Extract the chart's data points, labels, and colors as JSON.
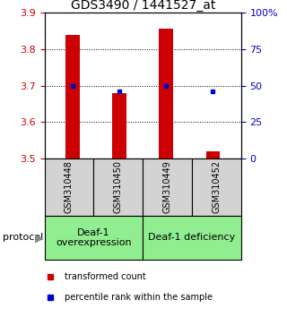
{
  "title": "GDS3490 / 1441527_at",
  "samples": [
    "GSM310448",
    "GSM310450",
    "GSM310449",
    "GSM310452"
  ],
  "red_bar_values": [
    3.84,
    3.68,
    3.855,
    3.52
  ],
  "blue_square_values": [
    3.7,
    3.685,
    3.7,
    3.685
  ],
  "ymin": 3.5,
  "ymax": 3.9,
  "yticks_left": [
    3.5,
    3.6,
    3.7,
    3.8,
    3.9
  ],
  "yticks_right": [
    0,
    25,
    50,
    75,
    100
  ],
  "yticks_right_labels": [
    "0",
    "25",
    "50",
    "75",
    "100%"
  ],
  "bar_color": "#cc0000",
  "square_color": "#0000cc",
  "bar_baseline": 3.5,
  "group1_label": "Deaf-1\noverexpression",
  "group2_label": "Deaf-1 deficiency",
  "group1_samples": 2,
  "group2_samples": 2,
  "protocol_label": "protocol",
  "group_bg_color": "#90ee90",
  "sample_bg_color": "#d3d3d3",
  "legend_red_label": "transformed count",
  "legend_blue_label": "percentile rank within the sample",
  "title_fontsize": 10,
  "tick_fontsize": 8,
  "sample_fontsize": 7,
  "group_fontsize": 8,
  "legend_fontsize": 7
}
